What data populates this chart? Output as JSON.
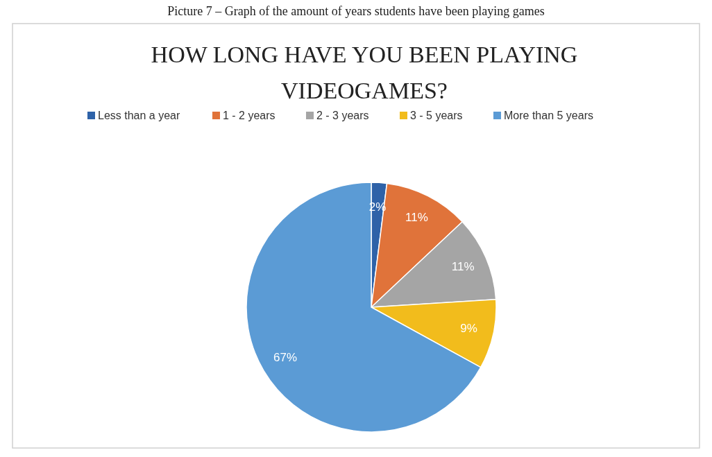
{
  "chart_data": {
    "type": "pie",
    "title": "HOW LONG HAVE YOU BEEN PLAYING VIDEOGAMES?",
    "categories": [
      "Less than a year",
      "1 - 2 years",
      "2 - 3 years",
      "3 - 5 years",
      "More than 5 years"
    ],
    "values": [
      2,
      11,
      11,
      9,
      67
    ],
    "colors": [
      "#2e62a8",
      "#e0733a",
      "#a5a5a5",
      "#f2bc1c",
      "#5b9bd5"
    ],
    "value_labels": [
      "2%",
      "11%",
      "11%",
      "9%",
      "67%"
    ],
    "legend": "top",
    "annotations": [
      "Picture 7 – Graph of the amount of years students have been playing games"
    ]
  }
}
